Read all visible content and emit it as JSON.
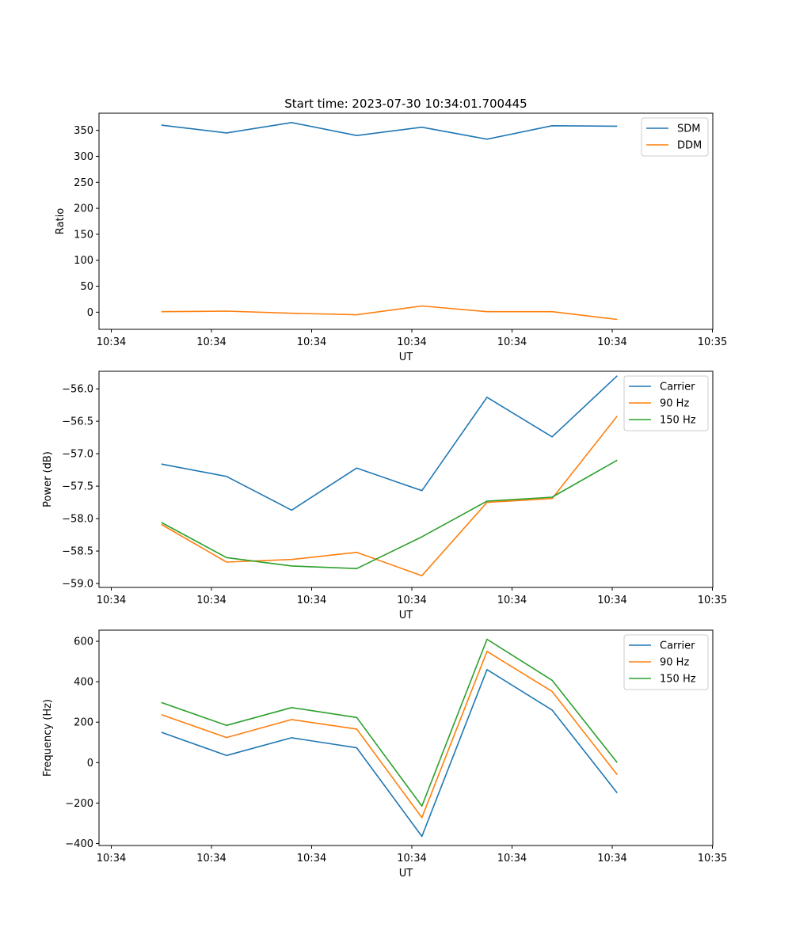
{
  "figure_title": "Start time: 2023-07-30 10:34:01.700445",
  "colors": {
    "blue": "#1f77b4",
    "orange": "#ff7f0e",
    "green": "#2ca02c"
  },
  "chart_data": [
    {
      "type": "line",
      "title": "Start time: 2023-07-30 10:34:01.700445",
      "xlabel": "UT",
      "ylabel": "Ratio",
      "x_tick_labels": [
        "10:34",
        "10:34",
        "10:34",
        "10:34",
        "10:34",
        "10:34",
        "10:34",
        "10:35"
      ],
      "x": [
        1,
        2,
        3,
        4,
        5,
        6,
        7,
        8
      ],
      "ylim": [
        -33,
        383
      ],
      "y_ticks": [
        0,
        50,
        100,
        150,
        200,
        250,
        300,
        350
      ],
      "legend_location": "top-right",
      "series": [
        {
          "name": "SDM",
          "color": "#1f77b4",
          "values": [
            360,
            345,
            365,
            340,
            356,
            333,
            359,
            358
          ]
        },
        {
          "name": "DDM",
          "color": "#ff7f0e",
          "values": [
            1,
            2,
            -2,
            -5,
            12,
            1,
            1,
            -14
          ]
        }
      ]
    },
    {
      "type": "line",
      "title": "",
      "xlabel": "UT",
      "ylabel": "Power (dB)",
      "x_tick_labels": [
        "10:34",
        "10:34",
        "10:34",
        "10:34",
        "10:34",
        "10:34",
        "10:34",
        "10:35"
      ],
      "x": [
        1,
        2,
        3,
        4,
        5,
        6,
        7,
        8
      ],
      "ylim": [
        -59.06,
        -55.73
      ],
      "y_ticks": [
        -59.0,
        -58.5,
        -58.0,
        -57.5,
        -57.0,
        -56.5,
        -56.0
      ],
      "y_tick_labels": [
        "−59.0",
        "−58.5",
        "−58.0",
        "−57.5",
        "−57.0",
        "−56.5",
        "−56.0"
      ],
      "legend_location": "top-right",
      "series": [
        {
          "name": "Carrier",
          "color": "#1f77b4",
          "values": [
            -57.16,
            -57.35,
            -57.87,
            -57.22,
            -57.57,
            -56.13,
            -56.74,
            -55.8
          ]
        },
        {
          "name": "90 Hz",
          "color": "#ff7f0e",
          "values": [
            -58.09,
            -58.67,
            -58.63,
            -58.52,
            -58.88,
            -57.75,
            -57.69,
            -56.42
          ]
        },
        {
          "name": "150 Hz",
          "color": "#2ca02c",
          "values": [
            -58.06,
            -58.6,
            -58.73,
            -58.77,
            -58.28,
            -57.73,
            -57.67,
            -57.1
          ]
        }
      ]
    },
    {
      "type": "line",
      "title": "",
      "xlabel": "UT",
      "ylabel": "Frequency (Hz)",
      "x_tick_labels": [
        "10:34",
        "10:34",
        "10:34",
        "10:34",
        "10:34",
        "10:34",
        "10:34",
        "10:35"
      ],
      "x": [
        1,
        2,
        3,
        4,
        5,
        6,
        7,
        8
      ],
      "ylim": [
        -410,
        655
      ],
      "y_ticks": [
        -400,
        -200,
        0,
        200,
        400,
        600
      ],
      "y_tick_labels": [
        "−400",
        "−200",
        "0",
        "200",
        "400",
        "600"
      ],
      "legend_location": "top-right",
      "series": [
        {
          "name": "Carrier",
          "color": "#1f77b4",
          "values": [
            150,
            35,
            123,
            73,
            -365,
            460,
            260,
            -150
          ]
        },
        {
          "name": "90 Hz",
          "color": "#ff7f0e",
          "values": [
            237,
            124,
            213,
            166,
            -272,
            550,
            352,
            -60
          ]
        },
        {
          "name": "150 Hz",
          "color": "#2ca02c",
          "values": [
            297,
            184,
            272,
            223,
            -215,
            610,
            407,
            0
          ]
        }
      ]
    }
  ]
}
